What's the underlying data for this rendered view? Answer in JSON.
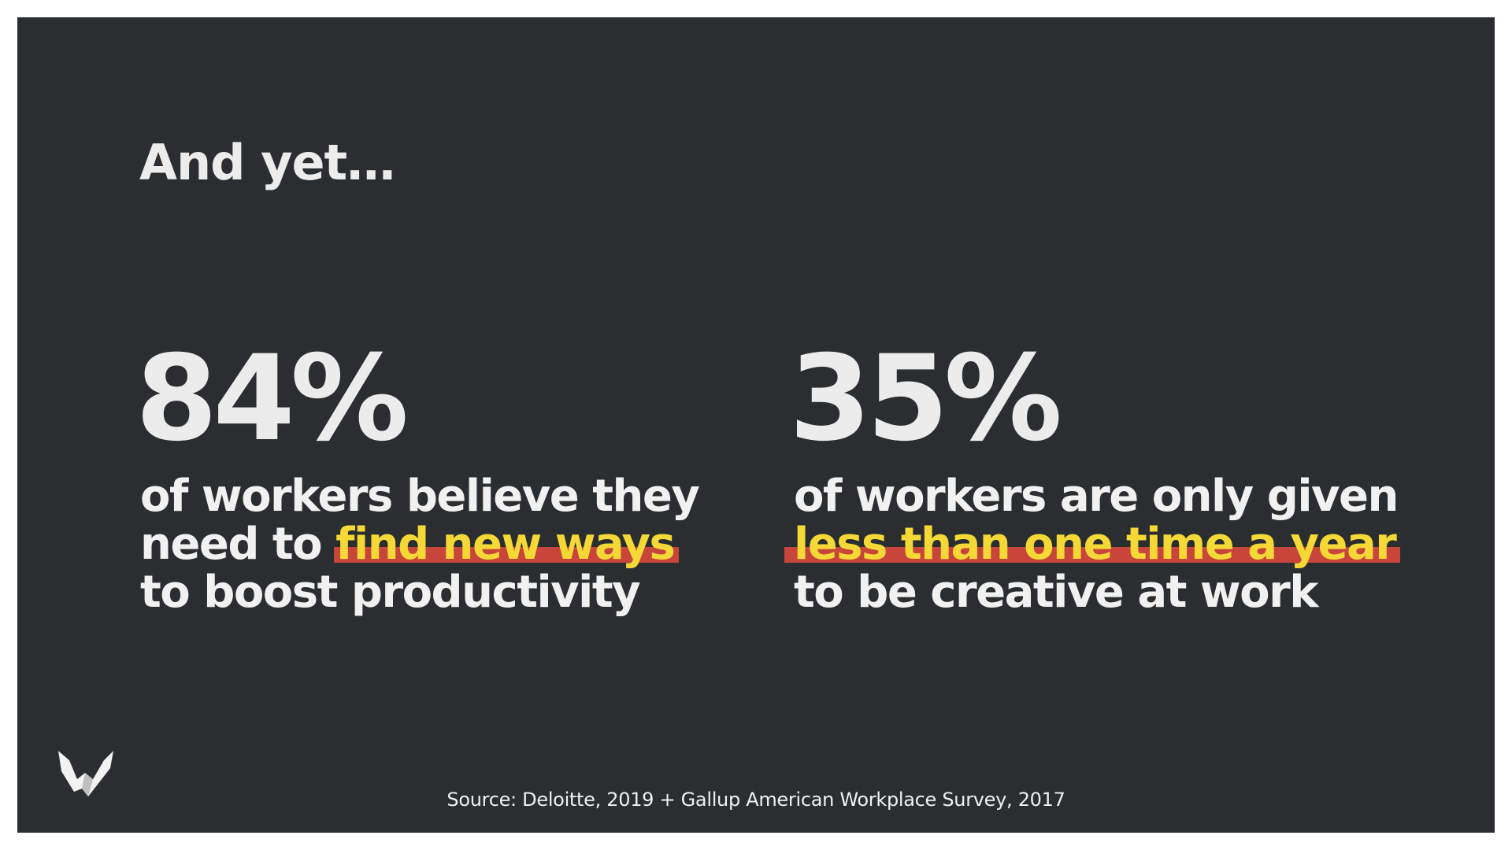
{
  "slide": {
    "headline": "And yet…",
    "stats": [
      {
        "value": "84%",
        "line1": "of workers believe they",
        "line2_prefix": "need to ",
        "line2_highlight": "find new ways",
        "line3": "to boost productivity"
      },
      {
        "value": "35%",
        "line1": "of workers are only given",
        "line2_prefix": "",
        "line2_highlight": "less than one time a year",
        "line3": "to be creative at work"
      }
    ],
    "source": "Source: Deloitte, 2019 + Gallup American Workplace Survey, 2017"
  },
  "colors": {
    "background": "#2b2e30",
    "text": "#ececec",
    "highlight_text": "#f4d836",
    "highlight_underline": "#c7453a"
  },
  "icons": {
    "logo": "brand-logo-icon"
  }
}
